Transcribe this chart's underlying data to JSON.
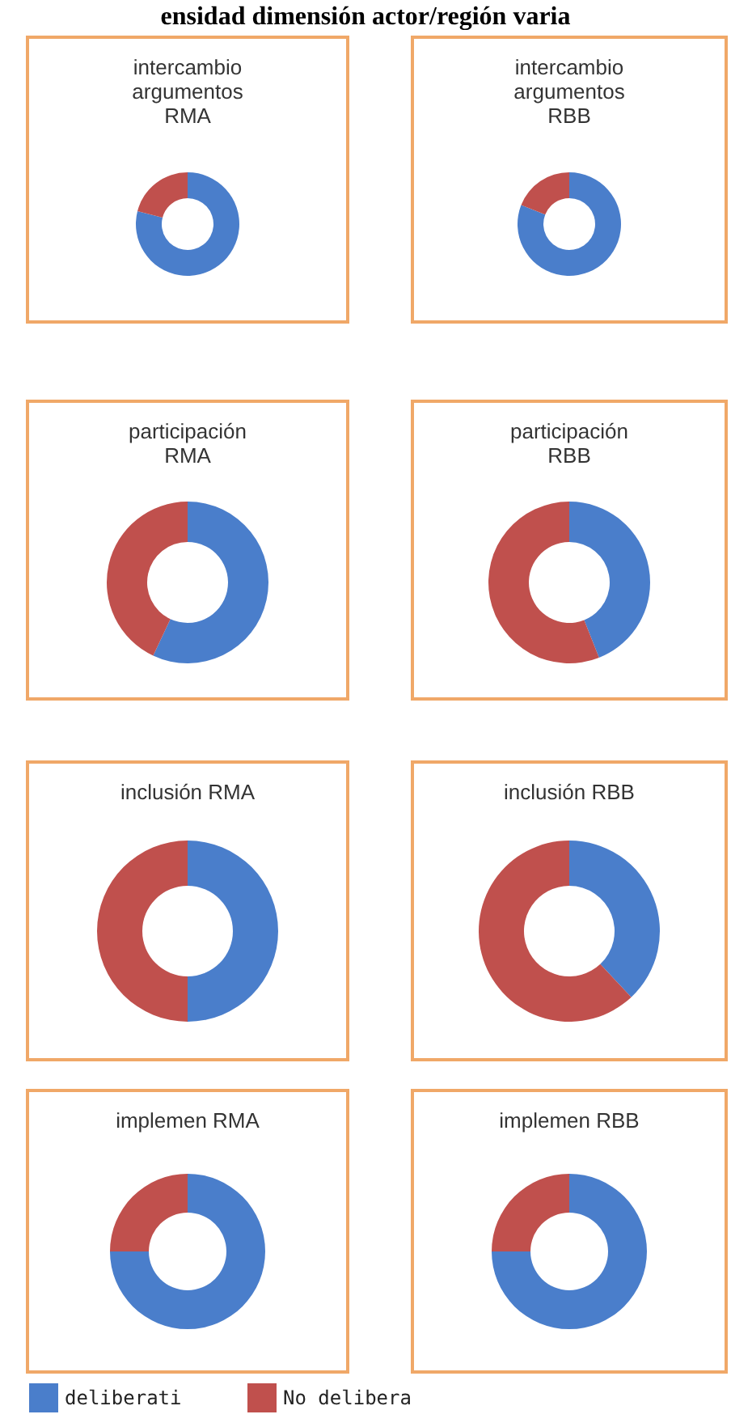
{
  "chart_data": [
    {
      "type": "other",
      "title": "ensidad dimensión actor/región varia"
    },
    {
      "type": "donut",
      "title": "intercambio argumentos RMA",
      "categories": [
        null,
        null
      ],
      "values": [
        79,
        21
      ],
      "colors": [
        "#4a7ecb",
        "#c0504d"
      ]
    },
    {
      "type": "donut",
      "title": "intercambio argumentos RBB",
      "categories": [
        null,
        null
      ],
      "values": [
        81,
        19
      ],
      "colors": [
        "#4a7ecb",
        "#c0504d"
      ]
    },
    {
      "type": "donut",
      "title": "participación RMA",
      "categories": [
        null,
        null
      ],
      "values": [
        57,
        43
      ],
      "colors": [
        "#4a7ecb",
        "#c0504d"
      ]
    },
    {
      "type": "donut",
      "title": "participación RBB",
      "categories": [
        null,
        null
      ],
      "values": [
        44,
        56
      ],
      "colors": [
        "#4a7ecb",
        "#c0504d"
      ]
    },
    {
      "type": "donut",
      "title": "inclusión RMA",
      "categories": [
        null,
        null
      ],
      "values": [
        50,
        50
      ],
      "colors": [
        "#4a7ecb",
        "#c0504d"
      ]
    },
    {
      "type": "donut",
      "title": "inclusión RBB",
      "categories": [
        null,
        null
      ],
      "values": [
        38,
        62
      ],
      "colors": [
        "#4a7ecb",
        "#c0504d"
      ]
    },
    {
      "type": "donut",
      "title": "implemen RMA",
      "categories": [
        "deliberati",
        "No delibera"
      ],
      "values": [
        75,
        25
      ],
      "colors": [
        "#4a7ecb",
        "#c0504d"
      ],
      "legend": "bottom"
    },
    {
      "type": "donut",
      "title": "implemen RBB",
      "categories": [
        null,
        null
      ],
      "values": [
        75,
        25
      ],
      "colors": [
        "#4a7ecb",
        "#c0504d"
      ]
    }
  ]
}
